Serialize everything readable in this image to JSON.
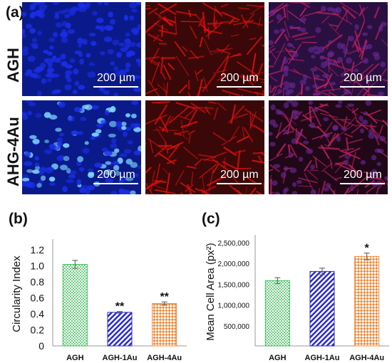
{
  "micrographs": {
    "panel_label": "(a)",
    "rows": [
      {
        "label": "AGH",
        "scale_bars": [
          "200 µm",
          "200 µm",
          "200 µm"
        ]
      },
      {
        "label": "AHG-4Au",
        "scale_bars": [
          "200 µm",
          "200 µm",
          "200 µm"
        ]
      }
    ],
    "colors": {
      "nuclei": "#1b2ee6",
      "actin": "#e01010",
      "merged": "#6a2a9a",
      "bright_nuclei": "#7fd6ff"
    }
  },
  "chart_data": [
    {
      "type": "bar",
      "panel_label": "(b)",
      "categories": [
        "AGH",
        "AGH-1Au",
        "AGH-4Au"
      ],
      "values": [
        1.02,
        0.42,
        0.53
      ],
      "errors": [
        0.05,
        0.01,
        0.02
      ],
      "significance": [
        "",
        "**",
        "**"
      ],
      "ylabel": "Circularity Index",
      "ylim": [
        0,
        1.3
      ],
      "yticks": [
        "0",
        "0.2",
        "0.4",
        "0.6",
        "0.8",
        "1.0",
        "1.2"
      ],
      "ytick_values": [
        0,
        0.2,
        0.4,
        0.6,
        0.8,
        1.0,
        1.2
      ],
      "bar_colors": [
        "#3dbf5a",
        "#2a2ac8",
        "#f08a3a"
      ],
      "patterns": [
        "dots",
        "diagonal",
        "checker"
      ]
    },
    {
      "type": "bar",
      "panel_label": "(c)",
      "categories": [
        "AGH",
        "AGH-1Au",
        "AGH-4Au"
      ],
      "values": [
        1570000,
        1790000,
        2150000
      ],
      "errors": [
        70000,
        80000,
        80000
      ],
      "significance": [
        "",
        "",
        "*"
      ],
      "ylabel": "Mean Cell Area (px²)",
      "ylim": [
        0,
        2600000
      ],
      "yticks": [
        "500,000",
        "1,000,000",
        "1,500,000",
        "2,000,000",
        "2,500,000"
      ],
      "ytick_values": [
        500000,
        1000000,
        1500000,
        2000000,
        2500000
      ],
      "bar_colors": [
        "#3dbf5a",
        "#2a2ac8",
        "#f08a3a"
      ],
      "patterns": [
        "dots",
        "diagonal",
        "checker"
      ]
    }
  ]
}
